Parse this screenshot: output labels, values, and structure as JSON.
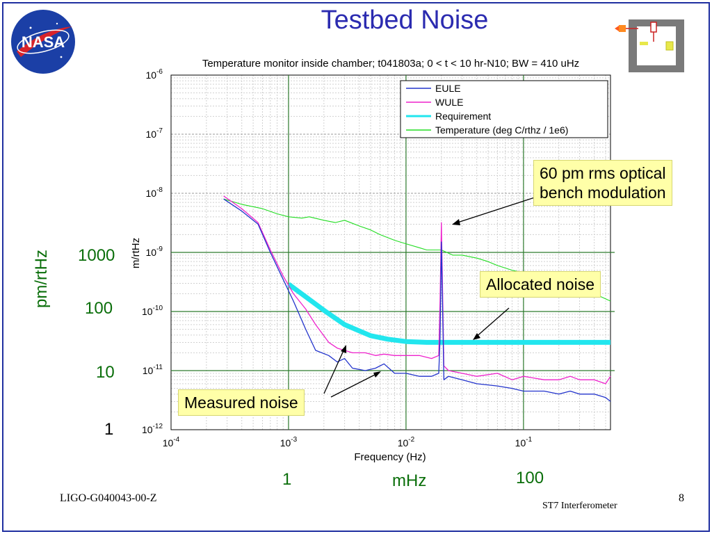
{
  "slide": {
    "title": "Testbed Noise",
    "logo_text": "NASA",
    "footer_left": "LIGO-G040043-00-Z",
    "footer_center": "ST7  Interferometer",
    "page_number": "8"
  },
  "callouts": {
    "modulation_line1": "60 pm rms optical",
    "modulation_line2": "bench modulation",
    "allocated": "Allocated noise",
    "measured": "Measured noise"
  },
  "overlay_labels": {
    "y_unit": "pm/rtHz",
    "y_ticks": [
      "1000",
      "100",
      "10",
      "1"
    ],
    "x_ticks": [
      "1",
      "100"
    ],
    "x_unit": "mHz"
  },
  "colors": {
    "eule": "#2233cc",
    "wule": "#ee22cc",
    "requirement": "#22e6ee",
    "temperature": "#22dd22",
    "guide_lines": "#2c7a2c",
    "title": "#2b2bb0"
  },
  "chart_data": {
    "type": "line",
    "title": "Temperature monitor inside chamber; t041803a; 0 < t < 10 hr-N10; BW = 410 uHz",
    "xlabel": "Frequency (Hz)",
    "ylabel": "m/rtHz",
    "x_scale": "log",
    "y_scale": "log",
    "xlim": [
      0.0001,
      0.55
    ],
    "ylim": [
      1e-12,
      1e-06
    ],
    "x_tick_labels": [
      "10-4",
      "10-3",
      "10-2",
      "10-1"
    ],
    "y_tick_labels": [
      "10-6",
      "10-7",
      "10-8",
      "10-9",
      "10-10",
      "10-11",
      "10-12"
    ],
    "grid": true,
    "legend_position": "top-right",
    "series": [
      {
        "name": "EULE",
        "color_key": "eule",
        "x": [
          0.00028,
          0.0004,
          0.00055,
          0.0007,
          0.0009,
          0.0011,
          0.0014,
          0.0017,
          0.0022,
          0.0026,
          0.003,
          0.0035,
          0.0045,
          0.0055,
          0.0065,
          0.008,
          0.01,
          0.013,
          0.0165,
          0.019,
          0.0195,
          0.02,
          0.021,
          0.023,
          0.03,
          0.04,
          0.06,
          0.08,
          0.1,
          0.15,
          0.2,
          0.25,
          0.3,
          0.4,
          0.5,
          0.55
        ],
        "y": [
          8e-09,
          5e-09,
          3e-09,
          1e-09,
          3.5e-10,
          1.5e-10,
          5e-11,
          2.2e-11,
          1.8e-11,
          1.4e-11,
          1.6e-11,
          1.1e-11,
          1e-11,
          1.1e-11,
          1.3e-11,
          9e-12,
          9e-12,
          8e-12,
          8e-12,
          9e-12,
          3.5e-11,
          1.5e-09,
          7e-12,
          8e-12,
          7e-12,
          6e-12,
          5.5e-12,
          5e-12,
          4.5e-12,
          4.5e-12,
          4e-12,
          4.5e-12,
          4e-12,
          4e-12,
          3.5e-12,
          3e-12
        ]
      },
      {
        "name": "WULE",
        "color_key": "wule",
        "x": [
          0.00028,
          0.0004,
          0.00055,
          0.0007,
          0.0009,
          0.0011,
          0.0014,
          0.0017,
          0.0022,
          0.0026,
          0.003,
          0.0035,
          0.0045,
          0.0055,
          0.0065,
          0.008,
          0.01,
          0.013,
          0.0165,
          0.019,
          0.0195,
          0.02,
          0.021,
          0.023,
          0.03,
          0.04,
          0.06,
          0.08,
          0.1,
          0.15,
          0.2,
          0.25,
          0.3,
          0.4,
          0.5,
          0.55
        ],
        "y": [
          9e-09,
          5.5e-09,
          3.2e-09,
          1.1e-09,
          4e-10,
          2e-10,
          1.1e-10,
          6e-11,
          3e-11,
          2.4e-11,
          2.2e-11,
          2e-11,
          2e-11,
          1.8e-11,
          1.9e-11,
          1.8e-11,
          1.8e-11,
          1.8e-11,
          1.6e-11,
          1.8e-11,
          1.5e-10,
          3.2e-09,
          1.2e-11,
          1e-11,
          9e-12,
          8e-12,
          9e-12,
          7e-12,
          8e-12,
          7e-12,
          7e-12,
          8e-12,
          7e-12,
          7e-12,
          6e-12,
          8e-12
        ]
      },
      {
        "name": "Requirement",
        "color_key": "requirement",
        "x": [
          0.001,
          0.0015,
          0.002,
          0.003,
          0.005,
          0.007,
          0.01,
          0.015,
          0.02,
          0.03,
          0.05,
          0.1,
          0.2,
          0.3,
          0.55
        ],
        "y": [
          2.9e-10,
          1.6e-10,
          1.05e-10,
          6e-11,
          3.9e-11,
          3.4e-11,
          3.1e-11,
          3e-11,
          3e-11,
          3e-11,
          3e-11,
          3e-11,
          3e-11,
          3e-11,
          3e-11
        ]
      },
      {
        "name": "Temperature  (deg C/rthz / 1e6)",
        "color_key": "temperature",
        "x": [
          0.00028,
          0.0004,
          0.0006,
          0.0008,
          0.001,
          0.0013,
          0.0015,
          0.002,
          0.0025,
          0.003,
          0.004,
          0.005,
          0.006,
          0.008,
          0.01,
          0.013,
          0.015,
          0.02,
          0.025,
          0.03,
          0.04,
          0.05,
          0.06,
          0.08,
          0.1,
          0.15,
          0.2,
          0.3,
          0.4,
          0.55
        ],
        "y": [
          8e-09,
          6.5e-09,
          5.5e-09,
          4.5e-09,
          4e-09,
          3.8e-09,
          4e-09,
          3.5e-09,
          3.2e-09,
          3.5e-09,
          2.8e-09,
          2.4e-09,
          2e-09,
          1.6e-09,
          1.4e-09,
          1.2e-09,
          1.1e-09,
          1.1e-09,
          9e-10,
          9e-10,
          8e-10,
          7e-10,
          6e-10,
          5e-10,
          4.5e-10,
          4e-10,
          3e-10,
          2.5e-10,
          2e-10,
          1.5e-10
        ]
      }
    ]
  }
}
